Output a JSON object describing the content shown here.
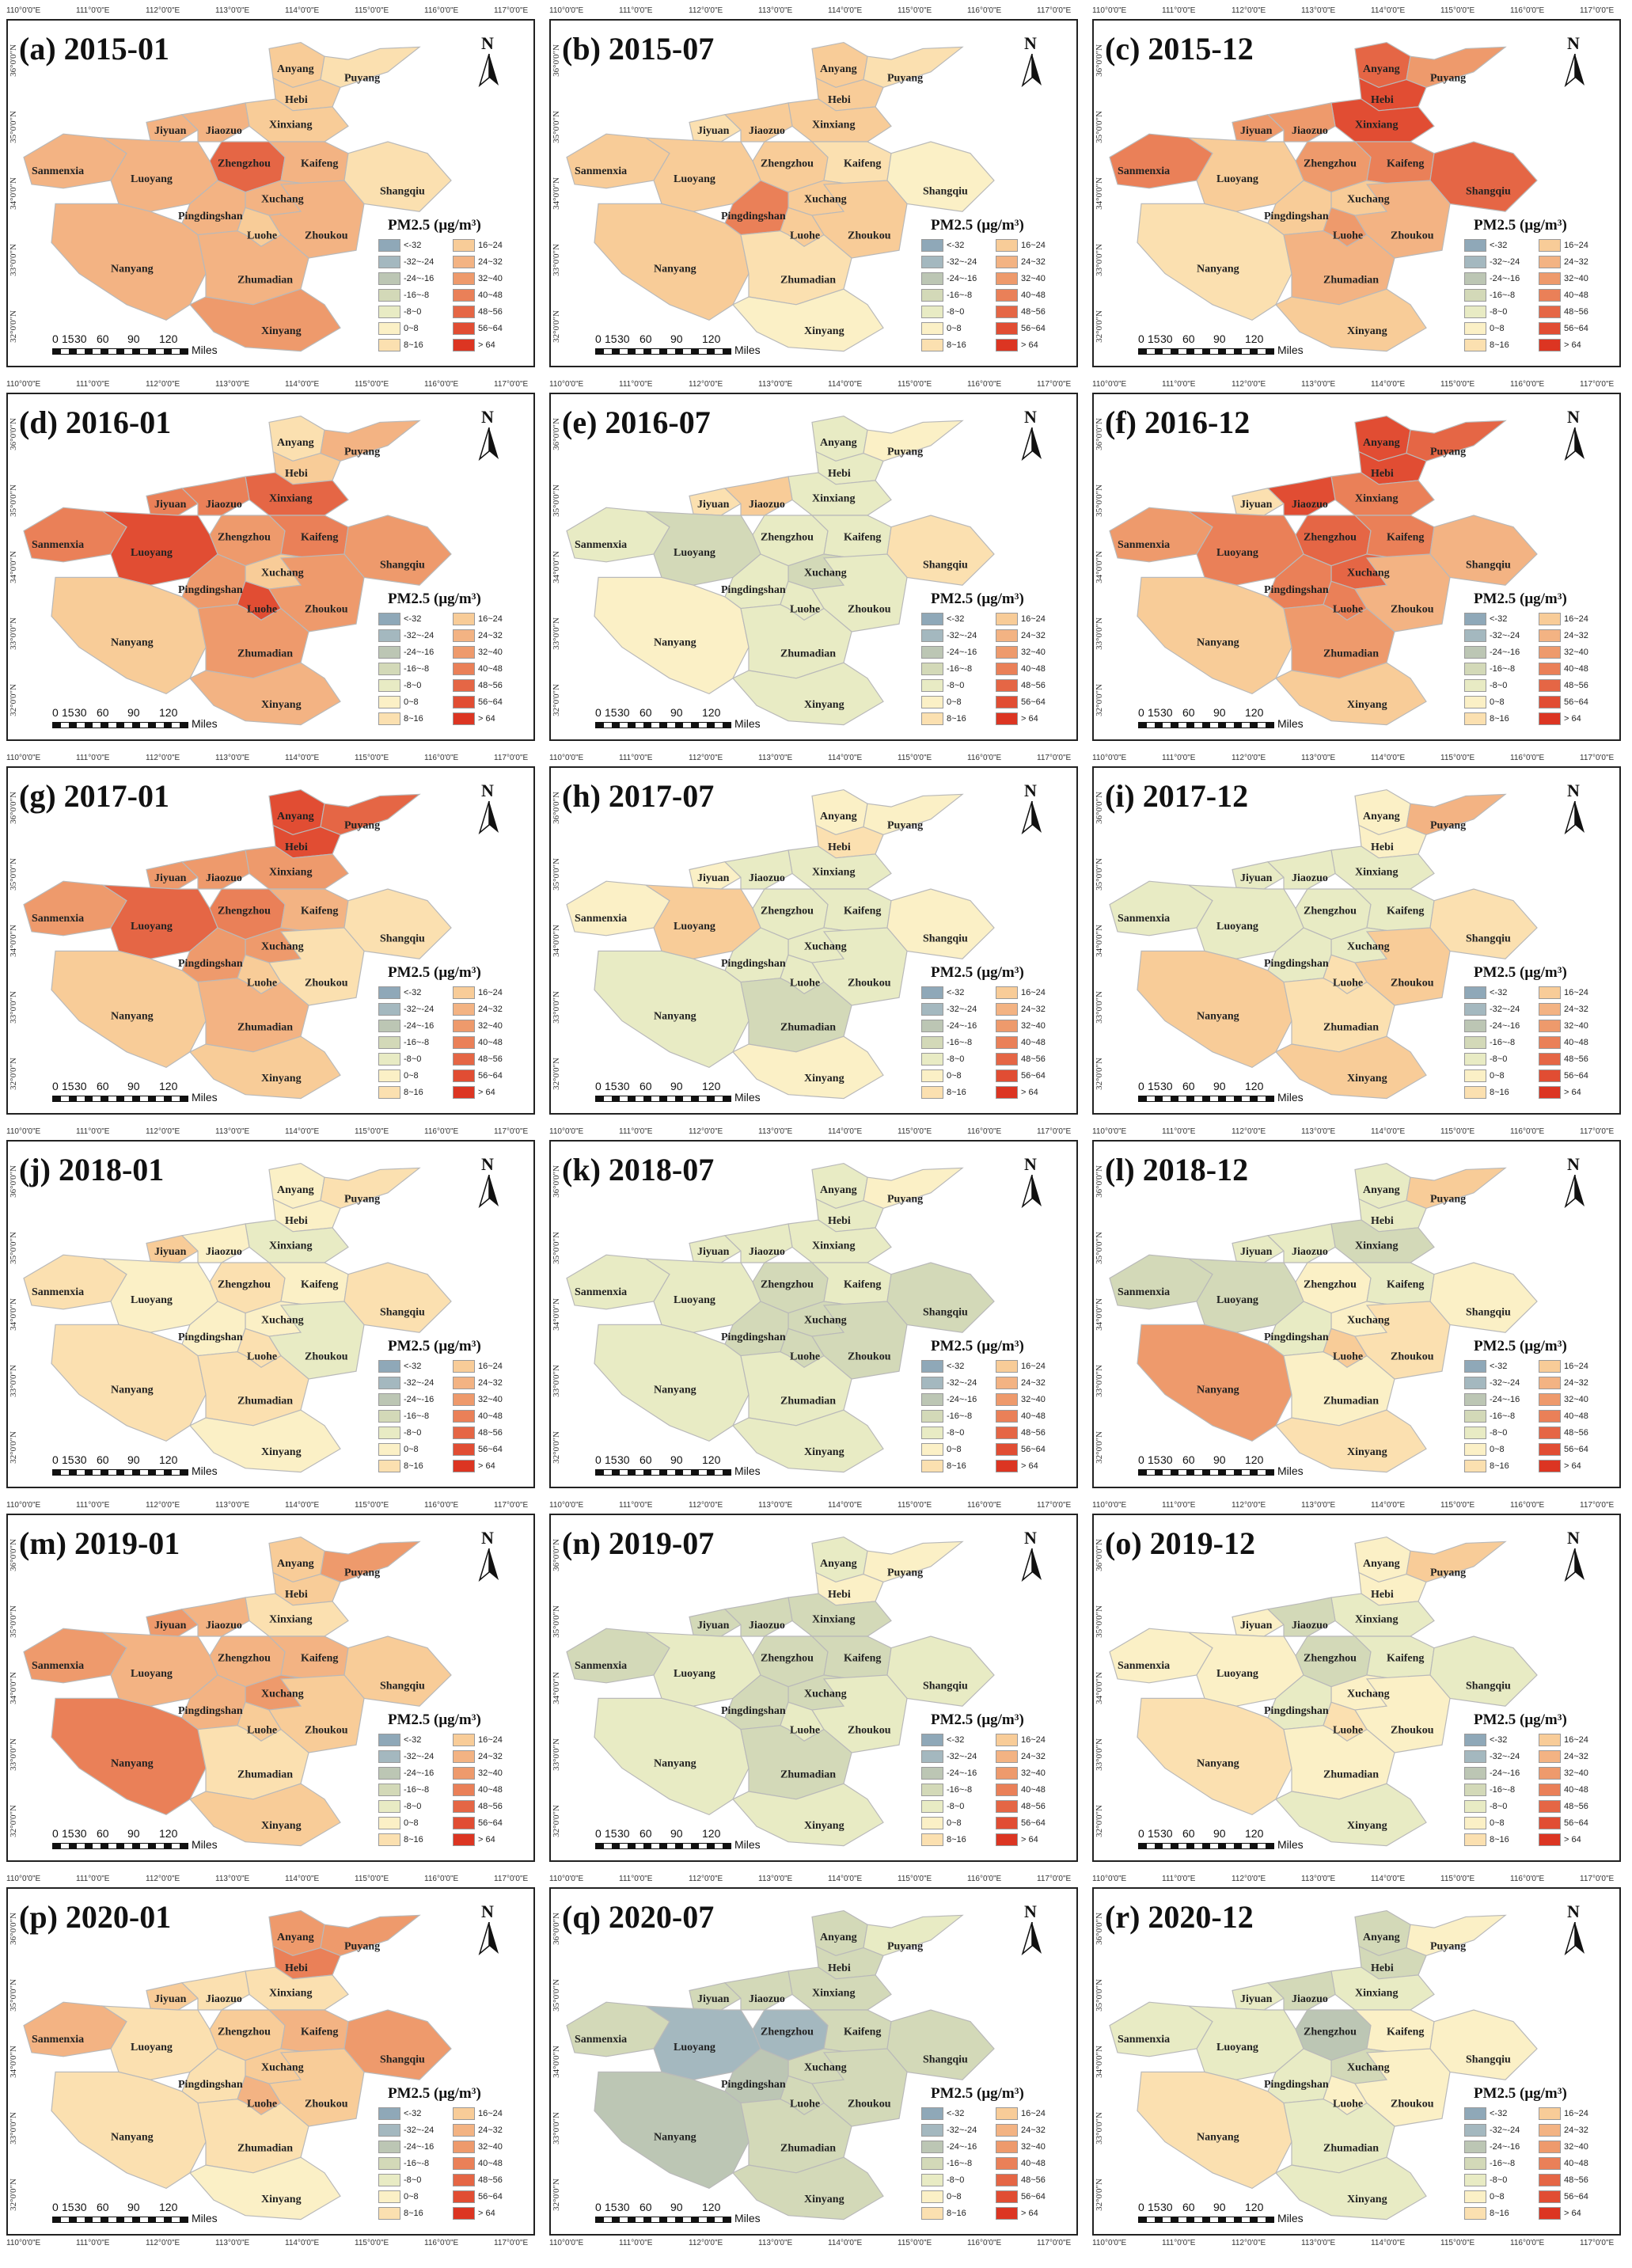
{
  "figure": {
    "legend_title": "PM2.5 (μg/m³)",
    "north_label": "N",
    "scale_ticks": [
      "0",
      "15",
      "30",
      "60",
      "90",
      "120"
    ],
    "scale_unit": "Miles",
    "lon_labels": [
      "110°0'0\"E",
      "111°0'0\"E",
      "112°0'0\"E",
      "113°0'0\"E",
      "114°0'0\"E",
      "115°0'0\"E",
      "116°0'0\"E",
      "117°0'0\"E"
    ],
    "lat_labels": [
      "36°0'0\"N",
      "35°0'0\"N",
      "34°0'0\"N",
      "33°0'0\"N",
      "32°0'0\"N"
    ]
  },
  "legend": {
    "classes": [
      {
        "label": "<-32",
        "color": "#8fa8b8"
      },
      {
        "label": "-32~-24",
        "color": "#a4b8bf"
      },
      {
        "label": "-24~-16",
        "color": "#bcc6b4"
      },
      {
        "label": "-16~-8",
        "color": "#d3d9b8"
      },
      {
        "label": "-8~0",
        "color": "#e8ebc4"
      },
      {
        "label": "0~8",
        "color": "#fbf0c6"
      },
      {
        "label": "8~16",
        "color": "#fbe0b0"
      },
      {
        "label": "16~24",
        "color": "#f8cc98"
      },
      {
        "label": "24~32",
        "color": "#f3b383"
      },
      {
        "label": "32~40",
        "color": "#ee9a6c"
      },
      {
        "label": "40~48",
        "color": "#ea8058"
      },
      {
        "label": "48~56",
        "color": "#e56645"
      },
      {
        "label": "56~64",
        "color": "#e14d33"
      },
      {
        "label": "> 64",
        "color": "#dc3522"
      }
    ]
  },
  "regions": [
    "Anyang",
    "Puyang",
    "Hebi",
    "Xinxiang",
    "Jiyuan",
    "Jiaozuo",
    "Zhengzhou",
    "Kaifeng",
    "Shangqiu",
    "Sanmenxia",
    "Luoyang",
    "Xuchang",
    "Pingdingshan",
    "Luohe",
    "Zhoukou",
    "Nanyang",
    "Zhumadian",
    "Xinyang"
  ],
  "panels": [
    {
      "title": "(a)  2015-01",
      "classes": {
        "Anyang": 7,
        "Puyang": 6,
        "Hebi": 7,
        "Xinxiang": 7,
        "Jiyuan": 8,
        "Jiaozuo": 8,
        "Zhengzhou": 11,
        "Kaifeng": 8,
        "Shangqiu": 6,
        "Sanmenxia": 8,
        "Luoyang": 8,
        "Xuchang": 8,
        "Pingdingshan": 8,
        "Luohe": 7,
        "Zhoukou": 8,
        "Nanyang": 8,
        "Zhumadian": 8,
        "Xinyang": 9
      }
    },
    {
      "title": "(b)  2015-07",
      "classes": {
        "Anyang": 7,
        "Puyang": 6,
        "Hebi": 7,
        "Xinxiang": 7,
        "Jiyuan": 6,
        "Jiaozuo": 7,
        "Zhengzhou": 7,
        "Kaifeng": 6,
        "Shangqiu": 5,
        "Sanmenxia": 7,
        "Luoyang": 7,
        "Xuchang": 7,
        "Pingdingshan": 10,
        "Luohe": 7,
        "Zhoukou": 7,
        "Nanyang": 7,
        "Zhumadian": 6,
        "Xinyang": 5
      }
    },
    {
      "title": "(c)  2015-12",
      "classes": {
        "Anyang": 11,
        "Puyang": 9,
        "Hebi": 12,
        "Xinxiang": 12,
        "Jiyuan": 9,
        "Jiaozuo": 9,
        "Zhengzhou": 9,
        "Kaifeng": 10,
        "Shangqiu": 11,
        "Sanmenxia": 10,
        "Luoyang": 7,
        "Xuchang": 7,
        "Pingdingshan": 7,
        "Luohe": 9,
        "Zhoukou": 8,
        "Nanyang": 6,
        "Zhumadian": 8,
        "Xinyang": 7
      }
    },
    {
      "title": "(d)  2016-01",
      "classes": {
        "Anyang": 6,
        "Puyang": 8,
        "Hebi": 7,
        "Xinxiang": 11,
        "Jiyuan": 10,
        "Jiaozuo": 10,
        "Zhengzhou": 9,
        "Kaifeng": 10,
        "Shangqiu": 9,
        "Sanmenxia": 10,
        "Luoyang": 12,
        "Xuchang": 7,
        "Pingdingshan": 9,
        "Luohe": 12,
        "Zhoukou": 9,
        "Nanyang": 7,
        "Zhumadian": 9,
        "Xinyang": 8
      }
    },
    {
      "title": "(e)  2016-07",
      "classes": {
        "Anyang": 4,
        "Puyang": 5,
        "Hebi": 4,
        "Xinxiang": 4,
        "Jiyuan": 6,
        "Jiaozuo": 7,
        "Zhengzhou": 4,
        "Kaifeng": 4,
        "Shangqiu": 6,
        "Sanmenxia": 4,
        "Luoyang": 3,
        "Xuchang": 3,
        "Pingdingshan": 4,
        "Luohe": 4,
        "Zhoukou": 4,
        "Nanyang": 5,
        "Zhumadian": 4,
        "Xinyang": 4
      }
    },
    {
      "title": "(f)  2016-12",
      "classes": {
        "Anyang": 12,
        "Puyang": 11,
        "Hebi": 12,
        "Xinxiang": 10,
        "Jiyuan": 6,
        "Jiaozuo": 12,
        "Zhengzhou": 11,
        "Kaifeng": 10,
        "Shangqiu": 8,
        "Sanmenxia": 9,
        "Luoyang": 10,
        "Xuchang": 11,
        "Pingdingshan": 10,
        "Luohe": 10,
        "Zhoukou": 8,
        "Nanyang": 7,
        "Zhumadian": 9,
        "Xinyang": 7
      }
    },
    {
      "title": "(g)  2017-01",
      "classes": {
        "Anyang": 12,
        "Puyang": 11,
        "Hebi": 12,
        "Xinxiang": 9,
        "Jiyuan": 9,
        "Jiaozuo": 9,
        "Zhengzhou": 10,
        "Kaifeng": 8,
        "Shangqiu": 6,
        "Sanmenxia": 9,
        "Luoyang": 11,
        "Xuchang": 9,
        "Pingdingshan": 9,
        "Luohe": 7,
        "Zhoukou": 6,
        "Nanyang": 7,
        "Zhumadian": 8,
        "Xinyang": 7
      }
    },
    {
      "title": "(h)  2017-07",
      "classes": {
        "Anyang": 5,
        "Puyang": 5,
        "Hebi": 6,
        "Xinxiang": 4,
        "Jiyuan": 5,
        "Jiaozuo": 4,
        "Zhengzhou": 4,
        "Kaifeng": 4,
        "Shangqiu": 5,
        "Sanmenxia": 5,
        "Luoyang": 7,
        "Xuchang": 4,
        "Pingdingshan": 4,
        "Luohe": 4,
        "Zhoukou": 4,
        "Nanyang": 4,
        "Zhumadian": 3,
        "Xinyang": 5
      }
    },
    {
      "title": "(i)  2017-12",
      "classes": {
        "Anyang": 5,
        "Puyang": 8,
        "Hebi": 5,
        "Xinxiang": 4,
        "Jiyuan": 4,
        "Jiaozuo": 4,
        "Zhengzhou": 4,
        "Kaifeng": 4,
        "Shangqiu": 6,
        "Sanmenxia": 4,
        "Luoyang": 4,
        "Xuchang": 4,
        "Pingdingshan": 4,
        "Luohe": 6,
        "Zhoukou": 7,
        "Nanyang": 7,
        "Zhumadian": 6,
        "Xinyang": 7
      }
    },
    {
      "title": "(j)  2018-01",
      "classes": {
        "Anyang": 5,
        "Puyang": 6,
        "Hebi": 5,
        "Xinxiang": 4,
        "Jiyuan": 7,
        "Jiaozuo": 5,
        "Zhengzhou": 6,
        "Kaifeng": 5,
        "Shangqiu": 6,
        "Sanmenxia": 6,
        "Luoyang": 5,
        "Xuchang": 5,
        "Pingdingshan": 5,
        "Luohe": 6,
        "Zhoukou": 4,
        "Nanyang": 6,
        "Zhumadian": 6,
        "Xinyang": 5
      }
    },
    {
      "title": "(k)  2018-07",
      "classes": {
        "Anyang": 4,
        "Puyang": 5,
        "Hebi": 4,
        "Xinxiang": 4,
        "Jiyuan": 4,
        "Jiaozuo": 4,
        "Zhengzhou": 3,
        "Kaifeng": 4,
        "Shangqiu": 3,
        "Sanmenxia": 4,
        "Luoyang": 4,
        "Xuchang": 3,
        "Pingdingshan": 3,
        "Luohe": 3,
        "Zhoukou": 3,
        "Nanyang": 4,
        "Zhumadian": 4,
        "Xinyang": 4
      }
    },
    {
      "title": "(l)  2018-12",
      "classes": {
        "Anyang": 4,
        "Puyang": 7,
        "Hebi": 4,
        "Xinxiang": 3,
        "Jiyuan": 4,
        "Jiaozuo": 4,
        "Zhengzhou": 5,
        "Kaifeng": 4,
        "Shangqiu": 5,
        "Sanmenxia": 3,
        "Luoyang": 3,
        "Xuchang": 5,
        "Pingdingshan": 4,
        "Luohe": 7,
        "Zhoukou": 6,
        "Nanyang": 9,
        "Zhumadian": 5,
        "Xinyang": 6
      }
    },
    {
      "title": "(m)  2019-01",
      "classes": {
        "Anyang": 7,
        "Puyang": 9,
        "Hebi": 7,
        "Xinxiang": 6,
        "Jiyuan": 9,
        "Jiaozuo": 8,
        "Zhengzhou": 8,
        "Kaifeng": 8,
        "Shangqiu": 7,
        "Sanmenxia": 9,
        "Luoyang": 8,
        "Xuchang": 9,
        "Pingdingshan": 8,
        "Luohe": 7,
        "Zhoukou": 7,
        "Nanyang": 10,
        "Zhumadian": 6,
        "Xinyang": 7
      }
    },
    {
      "title": "(n)  2019-07",
      "classes": {
        "Anyang": 4,
        "Puyang": 5,
        "Hebi": 5,
        "Xinxiang": 3,
        "Jiyuan": 3,
        "Jiaozuo": 3,
        "Zhengzhou": 3,
        "Kaifeng": 3,
        "Shangqiu": 4,
        "Sanmenxia": 3,
        "Luoyang": 4,
        "Xuchang": 3,
        "Pingdingshan": 3,
        "Luohe": 4,
        "Zhoukou": 4,
        "Nanyang": 4,
        "Zhumadian": 3,
        "Xinyang": 4
      }
    },
    {
      "title": "(o)  2019-12",
      "classes": {
        "Anyang": 5,
        "Puyang": 7,
        "Hebi": 5,
        "Xinxiang": 4,
        "Jiyuan": 5,
        "Jiaozuo": 3,
        "Zhengzhou": 3,
        "Kaifeng": 4,
        "Shangqiu": 4,
        "Sanmenxia": 5,
        "Luoyang": 5,
        "Xuchang": 5,
        "Pingdingshan": 4,
        "Luohe": 6,
        "Zhoukou": 5,
        "Nanyang": 6,
        "Zhumadian": 5,
        "Xinyang": 4
      }
    },
    {
      "title": "(p)  2020-01",
      "classes": {
        "Anyang": 9,
        "Puyang": 9,
        "Hebi": 10,
        "Xinxiang": 6,
        "Jiyuan": 7,
        "Jiaozuo": 6,
        "Zhengzhou": 7,
        "Kaifeng": 8,
        "Shangqiu": 9,
        "Sanmenxia": 8,
        "Luoyang": 6,
        "Xuchang": 7,
        "Pingdingshan": 6,
        "Luohe": 8,
        "Zhoukou": 7,
        "Nanyang": 6,
        "Zhumadian": 6,
        "Xinyang": 5
      }
    },
    {
      "title": "(q)  2020-07",
      "classes": {
        "Anyang": 3,
        "Puyang": 4,
        "Hebi": 3,
        "Xinxiang": 3,
        "Jiyuan": 3,
        "Jiaozuo": 3,
        "Zhengzhou": 1,
        "Kaifeng": 3,
        "Shangqiu": 3,
        "Sanmenxia": 3,
        "Luoyang": 1,
        "Xuchang": 3,
        "Pingdingshan": 2,
        "Luohe": 3,
        "Zhoukou": 3,
        "Nanyang": 2,
        "Zhumadian": 3,
        "Xinyang": 3
      }
    },
    {
      "title": "(r)  2020-12",
      "classes": {
        "Anyang": 3,
        "Puyang": 5,
        "Hebi": 3,
        "Xinxiang": 4,
        "Jiyuan": 4,
        "Jiaozuo": 3,
        "Zhengzhou": 2,
        "Kaifeng": 5,
        "Shangqiu": 5,
        "Sanmenxia": 4,
        "Luoyang": 4,
        "Xuchang": 3,
        "Pingdingshan": 4,
        "Luohe": 5,
        "Zhoukou": 5,
        "Nanyang": 6,
        "Zhumadian": 4,
        "Xinyang": 4
      }
    }
  ]
}
